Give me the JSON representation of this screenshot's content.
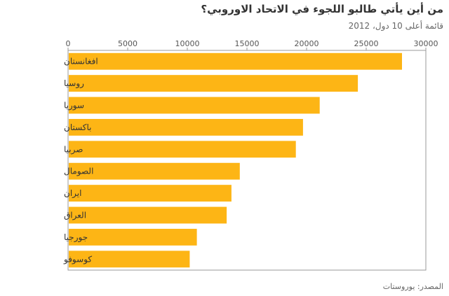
{
  "header": {
    "title": "من أين يأتي طالبو اللجوء في الاتحاد الاوروبي؟",
    "subtitle": "قائمة أعلى 10 دول، 2012"
  },
  "footer": {
    "source": "المصدر: يوروستات"
  },
  "colors": {
    "bar": "#fdb515",
    "axis": "#999999",
    "grid": "#e0e0e0"
  },
  "chart_data": {
    "type": "bar",
    "orientation": "horizontal",
    "title": "من أين يأتي طالبو اللجوء في الاتحاد الاوروبي؟",
    "subtitle": "قائمة أعلى 10 دول، 2012",
    "categories": [
      "افغانستان",
      "روسيا",
      "سوريا",
      "باكستان",
      "صربيا",
      "الصومال",
      "ايران",
      "العراق",
      "جورجيا",
      "كوسوفو"
    ],
    "values": [
      28000,
      24300,
      21100,
      19700,
      19100,
      14400,
      13700,
      13300,
      10800,
      10200
    ],
    "xlim": [
      0,
      30000
    ],
    "xticks": [
      "0",
      "5000",
      "10000",
      "15000",
      "20000",
      "25000",
      "30000"
    ],
    "xtick_values": [
      0,
      5000,
      10000,
      15000,
      20000,
      25000,
      30000
    ],
    "axis_position": "top",
    "grid": false,
    "legend": "none"
  }
}
